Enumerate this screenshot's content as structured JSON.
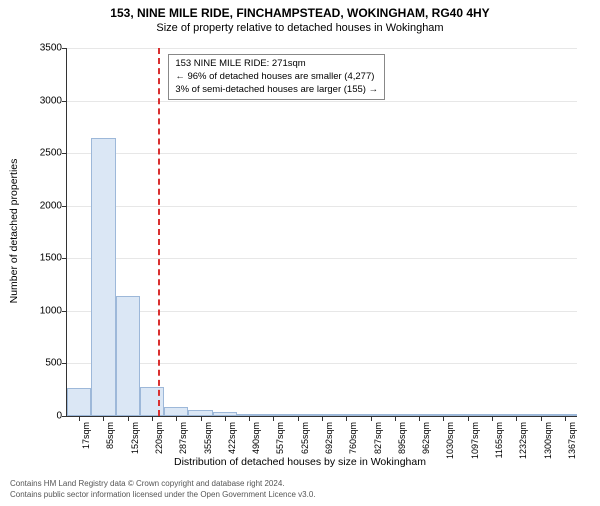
{
  "header": {
    "title_main": "153, NINE MILE RIDE, FINCHAMPSTEAD, WOKINGHAM, RG40 4HY",
    "title_sub": "Size of property relative to detached houses in Wokingham"
  },
  "axes": {
    "ylabel": "Number of detached properties",
    "xlabel": "Distribution of detached houses by size in Wokingham",
    "ylim": [
      0,
      3500
    ],
    "ytick_step": 500,
    "grid_color": "#e7e7e7"
  },
  "chart": {
    "type": "histogram",
    "bar_fill": "#dbe7f5",
    "bar_border": "#9db8d9",
    "background_color": "#ffffff",
    "x_categories": [
      "17sqm",
      "85sqm",
      "152sqm",
      "220sqm",
      "287sqm",
      "355sqm",
      "422sqm",
      "490sqm",
      "557sqm",
      "625sqm",
      "692sqm",
      "760sqm",
      "827sqm",
      "895sqm",
      "962sqm",
      "1030sqm",
      "1097sqm",
      "1165sqm",
      "1232sqm",
      "1300sqm",
      "1367sqm"
    ],
    "values": [
      270,
      2640,
      1140,
      280,
      90,
      60,
      35,
      20,
      14,
      10,
      8,
      6,
      5,
      4,
      4,
      3,
      3,
      2,
      2,
      2,
      2
    ],
    "reference_line": {
      "position_index": 3.76,
      "color": "#d93030"
    }
  },
  "annotation": {
    "line1": "153 NINE MILE RIDE: 271sqm",
    "line2": "← 96% of detached houses are smaller (4,277)",
    "line3": "3% of semi-detached houses are larger (155) →"
  },
  "footer": {
    "line1": "Contains HM Land Registry data © Crown copyright and database right 2024.",
    "line2": "Contains public sector information licensed under the Open Government Licence v3.0."
  }
}
